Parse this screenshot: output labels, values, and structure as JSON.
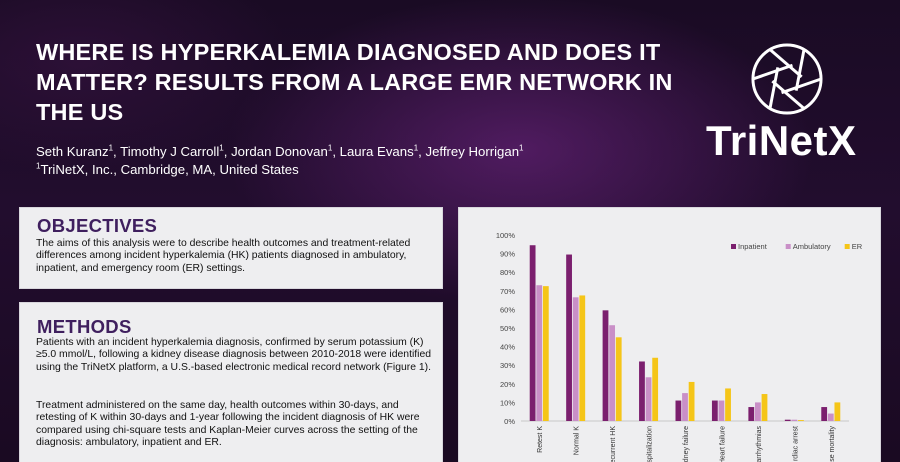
{
  "poster": {
    "title": "WHERE IS HYPERKALEMIA DIAGNOSED AND DOES IT MATTER? RESULTS FROM A LARGE EMR NETWORK IN THE US",
    "authors": [
      {
        "name": "Seth Kuranz",
        "affil": "1"
      },
      {
        "name": "Timothy J Carroll",
        "affil": "1"
      },
      {
        "name": "Jordan Donovan",
        "affil": "1"
      },
      {
        "name": "Laura Evans",
        "affil": "1"
      },
      {
        "name": "Jeffrey Horrigan",
        "affil": "1"
      }
    ],
    "affiliation_mark": "1",
    "affiliation": "TriNetX, Inc., Cambridge, MA, United States",
    "logo_text": "TriNetX",
    "logo_icon": "aperture-icon"
  },
  "objectives": {
    "title": "OBJECTIVES",
    "text": "The aims of this analysis were to describe health outcomes and treatment-related differences among incident hyperkalemia (HK) patients diagnosed in ambulatory, inpatient, and emergency room (ER) settings."
  },
  "methods": {
    "title": "METHODS",
    "p1": "Patients with an incident hyperkalemia diagnosis, confirmed by serum potassium (K) ≥5.0 mmol/L, following a kidney disease diagnosis between 2010-2018 were identified using the TriNetX platform, a U.S.-based electronic medical record network (Figure 1).",
    "p2": "Treatment administered on the same day, health outcomes within 30-days, and retesting of K within 30-days and 1-year following the incident diagnosis of HK were compared using chi-square tests and Kaplan-Meier curves across the setting of the diagnosis: ambulatory, inpatient and ER."
  },
  "chart_data": {
    "type": "bar",
    "categories": [
      "Retest K",
      "Normal K",
      "Recurrent HK",
      "Hospitalization",
      "Kidney failure",
      "Heart failure",
      "Arrhythmias",
      "Cardiac arrest",
      "Base mortality"
    ],
    "category_labels_visible": [
      "Retest K",
      "Normal K",
      "ecurrent HK",
      "ospitalization",
      "idney failure",
      "Heart failure",
      "arrhythmias",
      "rdiac arrest",
      "ise mortality"
    ],
    "series": [
      {
        "name": "Inpatient",
        "color": "#7b1f6e",
        "values": [
          94.5,
          89.5,
          59.5,
          32,
          11,
          11,
          7.5,
          0.7,
          7.5
        ]
      },
      {
        "name": "Ambulatory",
        "color": "#c98fc7",
        "values": [
          73,
          66.5,
          51.5,
          23.5,
          15,
          11,
          10,
          0.7,
          4
        ]
      },
      {
        "name": "ER",
        "color": "#f5c518",
        "values": [
          72.5,
          67.5,
          45,
          34,
          21,
          17.5,
          14.5,
          0.5,
          10
        ]
      }
    ],
    "yticks": [
      "0%",
      "10%",
      "20%",
      "30%",
      "40%",
      "50%",
      "60%",
      "70%",
      "80%",
      "90%",
      "100%"
    ],
    "ylim": [
      0,
      100
    ],
    "legend": "top-right",
    "grid": false,
    "title": "",
    "xlabel": "",
    "ylabel": ""
  }
}
